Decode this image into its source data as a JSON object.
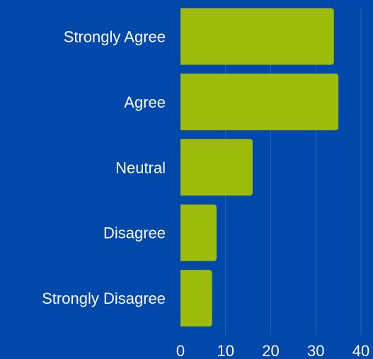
{
  "chart_data": {
    "type": "bar",
    "orientation": "horizontal",
    "categories": [
      "Strongly Agree",
      "Agree",
      "Neutral",
      "Disagree",
      "Strongly Disagree"
    ],
    "values": [
      34,
      35,
      16,
      8,
      7
    ],
    "title": "",
    "xlabel": "",
    "ylabel": "",
    "xlim": [
      0,
      40
    ],
    "x_ticks": [
      0,
      10,
      20,
      30,
      40
    ],
    "grid": true,
    "legend": "none",
    "colors": {
      "background": "#0148ab",
      "bar": "#9dbb0a",
      "grid": "#2a62c0",
      "text": "#ffffff"
    }
  }
}
